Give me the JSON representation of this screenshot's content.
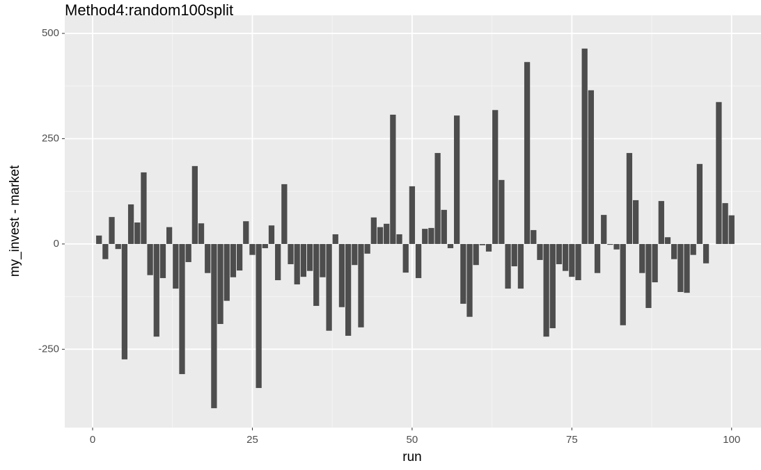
{
  "chart_data": {
    "type": "bar",
    "title": "Method4:random100split",
    "x_label": "run",
    "y_label": "my_invest - market",
    "x": [
      1,
      2,
      3,
      4,
      5,
      6,
      7,
      8,
      9,
      10,
      11,
      12,
      13,
      14,
      15,
      16,
      17,
      18,
      19,
      20,
      21,
      22,
      23,
      24,
      25,
      26,
      27,
      28,
      29,
      30,
      31,
      32,
      33,
      34,
      35,
      36,
      37,
      38,
      39,
      40,
      41,
      42,
      43,
      44,
      45,
      46,
      47,
      48,
      49,
      50,
      51,
      52,
      53,
      54,
      55,
      56,
      57,
      58,
      59,
      60,
      61,
      62,
      63,
      64,
      65,
      66,
      67,
      68,
      69,
      70,
      71,
      72,
      73,
      74,
      75,
      76,
      77,
      78,
      79,
      80,
      81,
      82,
      83,
      84,
      85,
      86,
      87,
      88,
      89,
      90,
      91,
      92,
      93,
      94,
      95,
      96,
      97,
      98,
      99,
      100
    ],
    "values": [
      20,
      -36,
      64,
      -12,
      -274,
      94,
      51,
      170,
      -74,
      -220,
      -81,
      40,
      -106,
      -309,
      -43,
      185,
      49,
      -69,
      -390,
      -190,
      -135,
      -79,
      -63,
      54,
      -26,
      -342,
      -10,
      44,
      -86,
      142,
      -48,
      -96,
      -78,
      -64,
      -147,
      -79,
      -206,
      23,
      -150,
      -218,
      -50,
      -198,
      -23,
      63,
      40,
      48,
      307,
      23,
      -68,
      137,
      -81,
      36,
      38,
      216,
      81,
      -10,
      305,
      -142,
      -173,
      -50,
      -3,
      -18,
      318,
      152,
      -106,
      -53,
      -106,
      432,
      33,
      -38,
      -220,
      -200,
      -48,
      -64,
      -78,
      -86,
      464,
      365,
      -69,
      69,
      -2,
      -13,
      -193,
      216,
      104,
      -69,
      -152,
      -91,
      102,
      16,
      -36,
      -114,
      -116,
      -26,
      190,
      -46,
      0,
      337,
      97,
      68
    ],
    "color": "#4d4d4d",
    "xlim": [
      -4.36,
      104.6
    ],
    "ylim": [
      -436,
      543
    ],
    "xticks": [
      0,
      25,
      50,
      75,
      100
    ],
    "yticks": [
      -250,
      0,
      250,
      500
    ],
    "grid": true
  }
}
